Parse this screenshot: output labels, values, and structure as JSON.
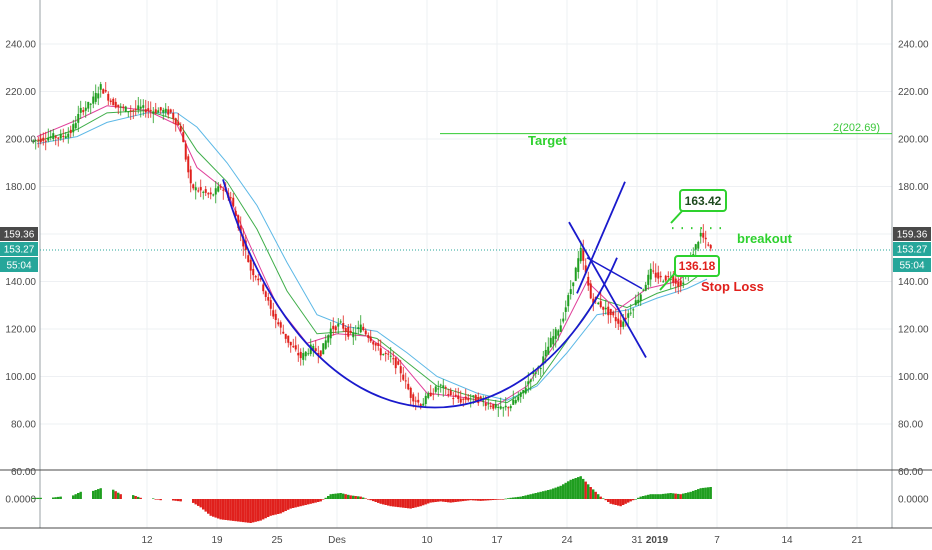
{
  "chart_data": {
    "type": "candlestick",
    "title": "",
    "y_axis": {
      "range": [
        60,
        250
      ],
      "ticks": [
        "60.00",
        "80.00",
        "100.00",
        "120.00",
        "140.00",
        "160.00",
        "180.00",
        "200.00",
        "220.00",
        "240.00"
      ],
      "tick_values": [
        60,
        80,
        100,
        120,
        140,
        160,
        180,
        200,
        220,
        240
      ]
    },
    "x_axis": {
      "ticks": [
        {
          "label": "12",
          "day": 12
        },
        {
          "label": "19",
          "day": 19
        },
        {
          "label": "25",
          "day": 25
        },
        {
          "label": "Des",
          "day": 31
        },
        {
          "label": "10",
          "day": 40
        },
        {
          "label": "17",
          "day": 47
        },
        {
          "label": "24",
          "day": 54
        },
        {
          "label": "31",
          "day": 61
        },
        {
          "label": "2019",
          "day": 63,
          "bold": true
        },
        {
          "label": "7",
          "day": 69
        },
        {
          "label": "14",
          "day": 76
        },
        {
          "label": "21",
          "day": 83
        }
      ]
    },
    "price_badges": [
      {
        "value": "159.36",
        "color": "#4a4a4a"
      },
      {
        "value": "153.27",
        "color": "#26a69a"
      },
      {
        "value": "55:04",
        "color": "#26a69a"
      }
    ],
    "current_price": 153.27,
    "target": {
      "label": "Target",
      "level_label": "2(202.69)",
      "value": 202.69
    },
    "annotations": {
      "high_box": "163.42",
      "stop_box": "136.18",
      "breakout": "breakout",
      "stop_loss": "Stop Loss"
    },
    "close_series": [
      [
        1,
        200
      ],
      [
        2,
        201
      ],
      [
        3,
        201
      ],
      [
        4,
        203
      ],
      [
        5,
        212
      ],
      [
        6,
        215
      ],
      [
        7,
        222
      ],
      [
        8,
        216
      ],
      [
        9,
        213
      ],
      [
        10,
        212
      ],
      [
        11,
        213
      ],
      [
        12,
        212
      ],
      [
        13,
        212
      ],
      [
        14,
        211
      ],
      [
        15,
        204
      ],
      [
        16,
        180
      ],
      [
        17,
        178
      ],
      [
        18,
        176
      ],
      [
        19,
        180
      ],
      [
        20,
        175
      ],
      [
        21,
        160
      ],
      [
        22,
        145
      ],
      [
        23,
        140
      ],
      [
        24,
        128
      ],
      [
        25,
        120
      ],
      [
        26,
        113
      ],
      [
        27,
        108
      ],
      [
        28,
        112
      ],
      [
        29,
        110
      ],
      [
        30,
        120
      ],
      [
        31,
        122
      ],
      [
        32,
        117
      ],
      [
        33,
        121
      ],
      [
        34,
        116
      ],
      [
        35,
        110
      ],
      [
        36,
        108
      ],
      [
        37,
        102
      ],
      [
        38,
        92
      ],
      [
        39,
        88
      ],
      [
        40,
        93
      ],
      [
        41,
        96
      ],
      [
        42,
        92
      ],
      [
        43,
        90
      ],
      [
        44,
        91
      ],
      [
        45,
        90
      ],
      [
        46,
        88
      ],
      [
        47,
        86
      ],
      [
        48,
        88
      ],
      [
        49,
        92
      ],
      [
        50,
        100
      ],
      [
        51,
        105
      ],
      [
        52,
        115
      ],
      [
        53,
        122
      ],
      [
        54,
        137
      ],
      [
        55,
        153
      ],
      [
        56,
        133
      ],
      [
        57,
        130
      ],
      [
        58,
        126
      ],
      [
        59,
        122
      ],
      [
        60,
        128
      ],
      [
        61,
        135
      ],
      [
        62,
        144
      ],
      [
        63,
        141
      ],
      [
        64,
        142
      ],
      [
        65,
        138
      ],
      [
        66,
        150
      ],
      [
        67,
        160
      ],
      [
        68,
        153
      ]
    ],
    "ma_fast": [
      [
        1,
        201
      ],
      [
        5,
        208
      ],
      [
        8,
        214
      ],
      [
        12,
        212
      ],
      [
        15,
        206
      ],
      [
        17,
        188
      ],
      [
        20,
        178
      ],
      [
        22,
        158
      ],
      [
        25,
        130
      ],
      [
        28,
        114
      ],
      [
        31,
        118
      ],
      [
        34,
        117
      ],
      [
        37,
        108
      ],
      [
        40,
        93
      ],
      [
        44,
        91
      ],
      [
        47,
        88
      ],
      [
        50,
        96
      ],
      [
        53,
        115
      ],
      [
        56,
        140
      ],
      [
        59,
        128
      ],
      [
        62,
        137
      ],
      [
        65,
        140
      ],
      [
        68,
        150
      ]
    ],
    "ma_mid": [
      [
        1,
        199
      ],
      [
        5,
        204
      ],
      [
        8,
        211
      ],
      [
        12,
        212
      ],
      [
        15,
        208
      ],
      [
        17,
        195
      ],
      [
        20,
        182
      ],
      [
        23,
        162
      ],
      [
        26,
        136
      ],
      [
        29,
        118
      ],
      [
        32,
        119
      ],
      [
        35,
        116
      ],
      [
        38,
        106
      ],
      [
        41,
        96
      ],
      [
        45,
        91
      ],
      [
        48,
        89
      ],
      [
        51,
        97
      ],
      [
        54,
        115
      ],
      [
        57,
        133
      ],
      [
        60,
        129
      ],
      [
        63,
        135
      ],
      [
        66,
        139
      ],
      [
        68,
        145
      ]
    ],
    "ma_slow": [
      [
        1,
        198
      ],
      [
        5,
        201
      ],
      [
        8,
        207
      ],
      [
        12,
        211
      ],
      [
        15,
        211
      ],
      [
        17,
        205
      ],
      [
        20,
        190
      ],
      [
        23,
        172
      ],
      [
        26,
        148
      ],
      [
        29,
        126
      ],
      [
        32,
        121
      ],
      [
        35,
        119
      ],
      [
        38,
        110
      ],
      [
        41,
        100
      ],
      [
        45,
        93
      ],
      [
        48,
        90
      ],
      [
        51,
        96
      ],
      [
        54,
        110
      ],
      [
        57,
        126
      ],
      [
        60,
        128
      ],
      [
        63,
        133
      ],
      [
        66,
        137
      ],
      [
        68,
        141
      ]
    ],
    "oscillator": {
      "tick": "0.0000",
      "range": [
        -1,
        1
      ],
      "values": [
        [
          1,
          0.05
        ],
        [
          3,
          0.1
        ],
        [
          5,
          0.3
        ],
        [
          7,
          0.45
        ],
        [
          9,
          0.2
        ],
        [
          11,
          0.05
        ],
        [
          13,
          -0.05
        ],
        [
          15,
          -0.1
        ],
        [
          17,
          -0.35
        ],
        [
          18,
          -0.7
        ],
        [
          19,
          -0.85
        ],
        [
          20,
          -0.9
        ],
        [
          21,
          -0.95
        ],
        [
          22,
          -1.0
        ],
        [
          23,
          -0.9
        ],
        [
          24,
          -0.7
        ],
        [
          25,
          -0.6
        ],
        [
          26,
          -0.4
        ],
        [
          27,
          -0.3
        ],
        [
          28,
          -0.2
        ],
        [
          29,
          -0.1
        ],
        [
          30,
          0.2
        ],
        [
          31,
          0.25
        ],
        [
          32,
          0.15
        ],
        [
          33,
          0.1
        ],
        [
          34,
          -0.05
        ],
        [
          35,
          -0.2
        ],
        [
          36,
          -0.3
        ],
        [
          37,
          -0.35
        ],
        [
          38,
          -0.4
        ],
        [
          39,
          -0.3
        ],
        [
          40,
          -0.15
        ],
        [
          41,
          -0.1
        ],
        [
          42,
          -0.15
        ],
        [
          43,
          -0.1
        ],
        [
          44,
          -0.05
        ],
        [
          45,
          -0.08
        ],
        [
          46,
          -0.05
        ],
        [
          47,
          -0.02
        ],
        [
          48,
          0.05
        ],
        [
          49,
          0.1
        ],
        [
          50,
          0.2
        ],
        [
          51,
          0.3
        ],
        [
          52,
          0.4
        ],
        [
          53,
          0.55
        ],
        [
          54,
          0.8
        ],
        [
          55,
          0.95
        ],
        [
          56,
          0.5
        ],
        [
          57,
          0.1
        ],
        [
          58,
          -0.2
        ],
        [
          59,
          -0.3
        ],
        [
          60,
          -0.1
        ],
        [
          61,
          0.1
        ],
        [
          62,
          0.2
        ],
        [
          63,
          0.2
        ],
        [
          64,
          0.25
        ],
        [
          65,
          0.2
        ],
        [
          66,
          0.3
        ],
        [
          67,
          0.45
        ],
        [
          68,
          0.5
        ]
      ]
    },
    "grid": true,
    "colors": {
      "up": "#1f9e1f",
      "down": "#e0201c",
      "curve": "#1a1acc",
      "target": "#33cc33",
      "ma_fast": "#e0409a",
      "ma_mid": "#3fae4a",
      "ma_slow": "#5cb8e6"
    }
  }
}
